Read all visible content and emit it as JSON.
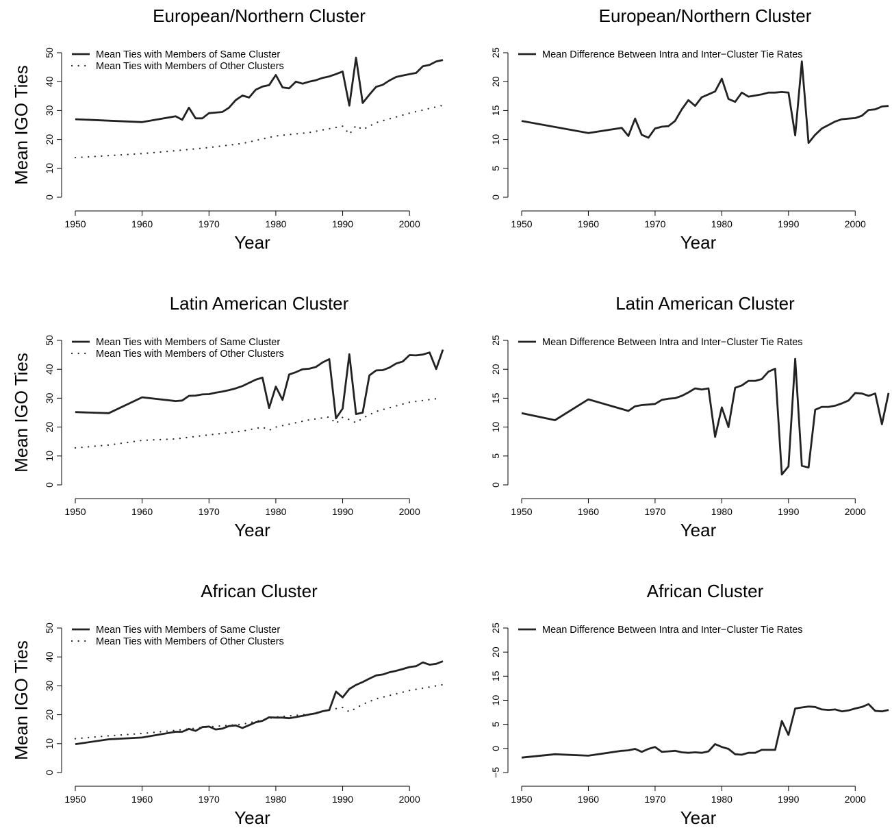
{
  "chart_data": [
    {
      "type": "line",
      "title": "European/Northern Cluster",
      "xlabel": "Year",
      "ylabel": "Mean IGO Ties",
      "xlim": [
        1950,
        2005
      ],
      "ylim": [
        0,
        50
      ],
      "xticks": [
        1950,
        1960,
        1970,
        1980,
        1990,
        2000
      ],
      "yticks": [
        0,
        10,
        20,
        30,
        40,
        50
      ],
      "legend_position": "top-left",
      "series": [
        {
          "name": "Mean Ties with Members of Same Cluster",
          "style": "solid",
          "x": [
            1950,
            1960,
            1965,
            1966,
            1967,
            1968,
            1969,
            1970,
            1971,
            1972,
            1973,
            1974,
            1975,
            1976,
            1977,
            1978,
            1979,
            1980,
            1981,
            1982,
            1983,
            1984,
            1985,
            1986,
            1987,
            1988,
            1989,
            1990,
            1991,
            1992,
            1993,
            1994,
            1995,
            1996,
            1997,
            1998,
            1999,
            2000,
            2001,
            2002,
            2003,
            2004,
            2005
          ],
          "y": [
            27,
            26,
            28,
            26.8,
            31,
            27.3,
            27.3,
            29.1,
            29.3,
            29.5,
            31,
            33.6,
            35.2,
            34.5,
            37.2,
            38.3,
            38.8,
            42.3,
            38,
            37.7,
            40,
            39.3,
            40,
            40.5,
            41.3,
            41.8,
            42.6,
            43.5,
            31.7,
            48.3,
            32.6,
            35.5,
            38.2,
            38.9,
            40.4,
            41.6,
            42.1,
            42.6,
            43,
            45.3,
            45.8,
            47,
            47.5
          ]
        },
        {
          "name": "Mean Ties with Members of Other Clusters",
          "style": "dotted",
          "x": [
            1950,
            1960,
            1965,
            1970,
            1975,
            1980,
            1985,
            1990,
            1991,
            1992,
            1993,
            1995,
            2000,
            2005
          ],
          "y": [
            13.7,
            15.1,
            16.1,
            17.2,
            18.6,
            21.2,
            22.4,
            24.6,
            21.8,
            24.8,
            23.4,
            25.8,
            29.1,
            31.8
          ]
        }
      ]
    },
    {
      "type": "line",
      "title": "European/Northern Cluster",
      "xlabel": "Year",
      "ylabel": "",
      "xlim": [
        1950,
        2005
      ],
      "ylim": [
        0,
        25
      ],
      "xticks": [
        1950,
        1960,
        1970,
        1980,
        1990,
        2000
      ],
      "yticks": [
        0,
        5,
        10,
        15,
        20,
        25
      ],
      "legend_position": "top-left",
      "series": [
        {
          "name": "Mean Difference Between Intra and Inter−Cluster Tie Rates",
          "style": "solid",
          "x": [
            1950,
            1960,
            1965,
            1966,
            1967,
            1968,
            1969,
            1970,
            1971,
            1972,
            1973,
            1974,
            1975,
            1976,
            1977,
            1978,
            1979,
            1980,
            1981,
            1982,
            1983,
            1984,
            1985,
            1986,
            1987,
            1988,
            1989,
            1990,
            1991,
            1992,
            1993,
            1994,
            1995,
            1996,
            1997,
            1998,
            1999,
            2000,
            2001,
            2002,
            2003,
            2004,
            2005
          ],
          "y": [
            13.2,
            11.1,
            12,
            10.6,
            13.6,
            10.8,
            10.3,
            11.9,
            12.2,
            12.3,
            13.2,
            15.2,
            16.8,
            15.8,
            17.3,
            17.8,
            18.3,
            20.5,
            17,
            16.5,
            18.1,
            17.4,
            17.6,
            17.8,
            18.1,
            18.1,
            18.2,
            18.1,
            10.7,
            23.5,
            9.4,
            10.8,
            11.9,
            12.5,
            13.1,
            13.5,
            13.6,
            13.7,
            14.1,
            15.1,
            15.2,
            15.7,
            15.8
          ]
        }
      ]
    },
    {
      "type": "line",
      "title": "Latin American Cluster",
      "xlabel": "Year",
      "ylabel": "Mean IGO Ties",
      "xlim": [
        1950,
        2005
      ],
      "ylim": [
        0,
        50
      ],
      "xticks": [
        1950,
        1960,
        1970,
        1980,
        1990,
        2000
      ],
      "yticks": [
        0,
        10,
        20,
        30,
        40,
        50
      ],
      "legend_position": "top-left",
      "series": [
        {
          "name": "Mean Ties with Members of Same Cluster",
          "style": "solid",
          "x": [
            1950,
            1955,
            1960,
            1965,
            1966,
            1967,
            1968,
            1969,
            1970,
            1971,
            1972,
            1973,
            1974,
            1975,
            1976,
            1977,
            1978,
            1979,
            1980,
            1981,
            1982,
            1983,
            1984,
            1985,
            1986,
            1987,
            1988,
            1989,
            1990,
            1991,
            1992,
            1993,
            1994,
            1995,
            1996,
            1997,
            1998,
            1999,
            2000,
            2001,
            2002,
            2003,
            2004,
            2005
          ],
          "y": [
            25.2,
            24.8,
            30.3,
            29,
            29.2,
            30.8,
            30.9,
            31.3,
            31.4,
            31.9,
            32.3,
            32.8,
            33.4,
            34.2,
            35.3,
            36.4,
            37.1,
            26.6,
            34,
            29.4,
            38.2,
            39,
            40,
            40.2,
            40.8,
            42.4,
            43.5,
            23,
            26.4,
            45.2,
            24.5,
            25,
            37.9,
            39.6,
            39.7,
            40.6,
            42,
            42.7,
            44.9,
            44.8,
            45.1,
            45.8,
            40.1,
            46.8
          ]
        },
        {
          "name": "Mean Ties with Members of Other Clusters",
          "style": "dotted",
          "x": [
            1950,
            1955,
            1960,
            1965,
            1970,
            1975,
            1978,
            1979,
            1980,
            1985,
            1988,
            1989,
            1990,
            1991,
            1992,
            1993,
            1995,
            2000,
            2004
          ],
          "y": [
            12.8,
            13.8,
            15.4,
            15.9,
            17.3,
            18.6,
            20,
            18.9,
            20,
            22.5,
            23.5,
            21.2,
            23.4,
            22.6,
            21.5,
            23.1,
            25.4,
            28.6,
            29.8
          ]
        }
      ]
    },
    {
      "type": "line",
      "title": "Latin American Cluster",
      "xlabel": "Year",
      "ylabel": "",
      "xlim": [
        1950,
        2005
      ],
      "ylim": [
        0,
        25
      ],
      "xticks": [
        1950,
        1960,
        1970,
        1980,
        1990,
        2000
      ],
      "yticks": [
        0,
        5,
        10,
        15,
        20,
        25
      ],
      "legend_position": "top-left",
      "series": [
        {
          "name": "Mean Difference Between Intra and Inter−Cluster Tie Rates",
          "style": "solid",
          "x": [
            1950,
            1955,
            1960,
            1966,
            1967,
            1968,
            1969,
            1970,
            1971,
            1972,
            1973,
            1974,
            1975,
            1976,
            1977,
            1978,
            1979,
            1980,
            1981,
            1982,
            1983,
            1984,
            1985,
            1986,
            1987,
            1988,
            1989,
            1990,
            1991,
            1992,
            1993,
            1994,
            1995,
            1996,
            1997,
            1998,
            1999,
            2000,
            2001,
            2002,
            2003,
            2004,
            2005
          ],
          "y": [
            12.4,
            11.2,
            14.8,
            12.8,
            13.6,
            13.8,
            13.9,
            14,
            14.7,
            14.9,
            15,
            15.4,
            16,
            16.7,
            16.5,
            16.7,
            8.3,
            13.4,
            10,
            16.8,
            17.2,
            18,
            18,
            18.3,
            19.6,
            20.1,
            1.8,
            3.2,
            21.8,
            3.3,
            3,
            13,
            13.5,
            13.5,
            13.7,
            14.1,
            14.6,
            15.9,
            15.8,
            15.4,
            15.8,
            10.5,
            15.9
          ]
        }
      ]
    },
    {
      "type": "line",
      "title": "African Cluster",
      "xlabel": "Year",
      "ylabel": "Mean IGO Ties",
      "xlim": [
        1950,
        2005
      ],
      "ylim": [
        0,
        50
      ],
      "xticks": [
        1950,
        1960,
        1970,
        1980,
        1990,
        2000
      ],
      "yticks": [
        0,
        10,
        20,
        30,
        40,
        50
      ],
      "legend_position": "top-left",
      "series": [
        {
          "name": "Mean Ties with Members of Same Cluster",
          "style": "solid",
          "x": [
            1950,
            1955,
            1960,
            1965,
            1966,
            1967,
            1968,
            1969,
            1970,
            1971,
            1972,
            1973,
            1974,
            1975,
            1976,
            1977,
            1978,
            1979,
            1980,
            1981,
            1982,
            1983,
            1984,
            1985,
            1986,
            1987,
            1988,
            1989,
            1990,
            1991,
            1992,
            1993,
            1994,
            1995,
            1996,
            1997,
            1998,
            1999,
            2000,
            2001,
            2002,
            2003,
            2004,
            2005
          ],
          "y": [
            9.8,
            11.5,
            12.1,
            14.1,
            14.1,
            15.1,
            14.4,
            15.7,
            15.9,
            14.9,
            15.2,
            16.1,
            16.3,
            15.4,
            16.4,
            17.4,
            17.9,
            19.1,
            19,
            19,
            18.8,
            19.2,
            19.6,
            20.1,
            20.5,
            21.2,
            21.6,
            28,
            26,
            28.9,
            30.3,
            31.3,
            32.5,
            33.6,
            33.9,
            34.7,
            35.2,
            35.8,
            36.5,
            36.8,
            38.1,
            37.3,
            37.6,
            38.5
          ]
        },
        {
          "name": "Mean Ties with Members of Other Clusters",
          "style": "dotted",
          "x": [
            1950,
            1955,
            1960,
            1965,
            1970,
            1975,
            1980,
            1985,
            1988,
            1990,
            1991,
            1993,
            1995,
            2000,
            2005
          ],
          "y": [
            11.7,
            12.7,
            13.5,
            14.6,
            15.8,
            16.7,
            19.2,
            20.2,
            21.7,
            22.5,
            21,
            23.6,
            25.5,
            28.4,
            30.4
          ]
        }
      ]
    },
    {
      "type": "line",
      "title": "African Cluster",
      "xlabel": "Year",
      "ylabel": "",
      "xlim": [
        1950,
        2005
      ],
      "ylim": [
        -5,
        25
      ],
      "xticks": [
        1950,
        1960,
        1970,
        1980,
        1990,
        2000
      ],
      "yticks": [
        -5,
        0,
        5,
        10,
        15,
        20,
        25
      ],
      "legend_position": "top-left",
      "series": [
        {
          "name": "Mean Difference Between Intra and Inter−Cluster Tie Rates",
          "style": "solid",
          "x": [
            1950,
            1955,
            1960,
            1965,
            1966,
            1967,
            1968,
            1969,
            1970,
            1971,
            1972,
            1973,
            1974,
            1975,
            1976,
            1977,
            1978,
            1979,
            1980,
            1981,
            1982,
            1983,
            1984,
            1985,
            1986,
            1987,
            1988,
            1989,
            1990,
            1991,
            1992,
            1993,
            1994,
            1995,
            1996,
            1997,
            1998,
            1999,
            2000,
            2001,
            2002,
            2003,
            2004,
            2005
          ],
          "y": [
            -1.9,
            -1.2,
            -1.5,
            -0.5,
            -0.4,
            -0.1,
            -0.7,
            -0.1,
            0.3,
            -0.7,
            -0.6,
            -0.5,
            -0.8,
            -0.9,
            -0.8,
            -0.9,
            -0.6,
            0.9,
            0.3,
            -0.1,
            -1.2,
            -1.3,
            -0.9,
            -0.9,
            -0.3,
            -0.3,
            -0.3,
            5.7,
            2.8,
            8.3,
            8.5,
            8.7,
            8.6,
            8.1,
            8,
            8.1,
            7.7,
            7.9,
            8.3,
            8.6,
            9.2,
            7.8,
            7.7,
            8
          ]
        }
      ]
    }
  ]
}
